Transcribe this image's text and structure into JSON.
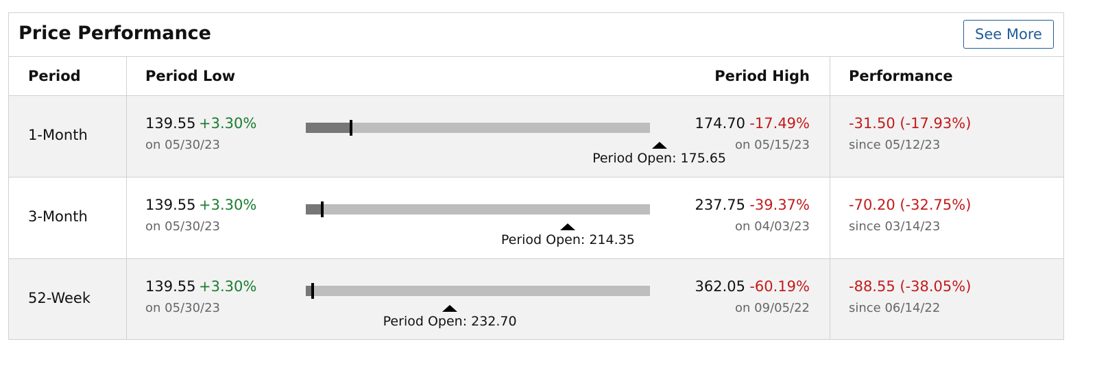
{
  "header": {
    "title": "Price Performance",
    "button": "See More"
  },
  "columns": [
    "Period",
    "Period Low",
    "Period High",
    "Performance"
  ],
  "rows": [
    {
      "period": "1-Month",
      "low": "139.55",
      "low_change": "+3.30%",
      "low_date": "on 05/30/23",
      "open": "Period Open: 175.65",
      "high": "174.70",
      "high_change": "-17.49%",
      "high_date": "on 05/15/23",
      "performance": "-31.50 (-17.93%)",
      "since": "since 05/12/23"
    },
    {
      "period": "3-Month",
      "low": "139.55",
      "low_change": "+3.30%",
      "low_date": "on 05/30/23",
      "open": "Period Open: 214.35",
      "high": "237.75",
      "high_change": "-39.37%",
      "high_date": "on 04/03/23",
      "performance": "-70.20 (-32.75%)",
      "since": "since 03/14/23"
    },
    {
      "period": "52-Week",
      "low": "139.55",
      "low_change": "+3.30%",
      "low_date": "on 05/30/23",
      "open": "Period Open: 232.70",
      "high": "362.05",
      "high_change": "-60.19%",
      "high_date": "on 09/05/22",
      "performance": "-88.55 (-38.05%)",
      "since": "since 06/14/22"
    }
  ]
}
